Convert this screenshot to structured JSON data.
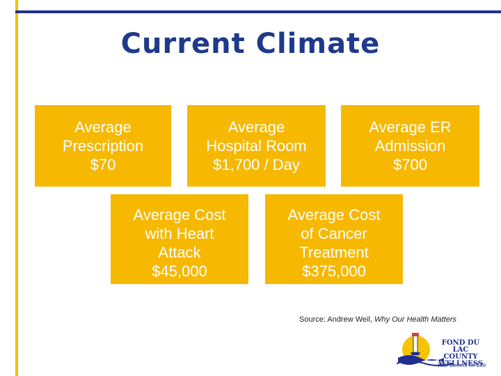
{
  "title": "Current Climate",
  "boxes": [
    {
      "lines": [
        "Average",
        "Prescription",
        "$70"
      ]
    },
    {
      "lines": [
        "Average",
        "Hospital Room",
        "$1,700 / Day"
      ]
    },
    {
      "lines": [
        "Average ER",
        "Admission",
        "$700"
      ]
    },
    {
      "lines": [
        "Average Cost",
        "with Heart",
        "Attack",
        "$45,000"
      ]
    },
    {
      "lines": [
        "Average Cost",
        "of Cancer",
        "Treatment",
        "$375,000"
      ]
    }
  ],
  "source": {
    "prefix": "Source: Andrew Weil, ",
    "book": "Why Our Health Matters"
  },
  "logo": {
    "line1": "FOND DU LAC",
    "line2": "COUNTY",
    "line3": "WELLNESS",
    "tagline": "Your Benefit for Life"
  },
  "colors": {
    "box": "#f6b800",
    "title": "#1f3a8a",
    "rule_vertical": "#f2c200",
    "rule_horizontal": "#1f2f8f"
  }
}
